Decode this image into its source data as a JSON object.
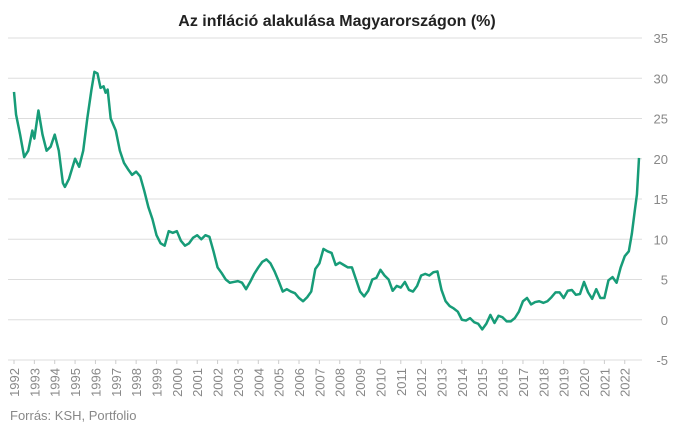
{
  "chart_data": {
    "type": "line",
    "title": "Az infláció alakulása Magyarországon (%)",
    "source": "Forrás: KSH, Portfolio",
    "color": "#179c78",
    "grid": true,
    "xlim": [
      1992,
      2022.7
    ],
    "xticks": [
      1992,
      1993,
      1994,
      1995,
      1996,
      1997,
      1998,
      1999,
      2000,
      2001,
      2002,
      2003,
      2004,
      2005,
      2006,
      2007,
      2008,
      2009,
      2010,
      2011,
      2012,
      2013,
      2014,
      2015,
      2016,
      2017,
      2018,
      2019,
      2020,
      2021,
      2022
    ],
    "ylim": [
      -5,
      35
    ],
    "yticks": [
      -5,
      0,
      5,
      10,
      15,
      20,
      25,
      30,
      35
    ],
    "x": [
      1992.0,
      1992.1,
      1992.3,
      1992.5,
      1992.7,
      1992.9,
      1993.0,
      1993.2,
      1993.4,
      1993.6,
      1993.8,
      1994.0,
      1994.2,
      1994.4,
      1994.5,
      1994.7,
      1995.0,
      1995.2,
      1995.4,
      1995.6,
      1995.8,
      1995.95,
      1996.1,
      1996.25,
      1996.4,
      1996.5,
      1996.6,
      1996.75,
      1997.0,
      1997.2,
      1997.4,
      1997.6,
      1997.8,
      1998.0,
      1998.2,
      1998.4,
      1998.6,
      1998.8,
      1999.0,
      1999.2,
      1999.4,
      1999.6,
      1999.8,
      2000.0,
      2000.2,
      2000.4,
      2000.6,
      2000.8,
      2001.0,
      2001.2,
      2001.4,
      2001.6,
      2001.8,
      2002.0,
      2002.2,
      2002.4,
      2002.6,
      2002.8,
      2003.0,
      2003.2,
      2003.4,
      2003.6,
      2003.8,
      2004.0,
      2004.2,
      2004.4,
      2004.6,
      2004.8,
      2005.0,
      2005.2,
      2005.4,
      2005.6,
      2005.8,
      2006.0,
      2006.2,
      2006.4,
      2006.6,
      2006.8,
      2007.0,
      2007.2,
      2007.4,
      2007.6,
      2007.8,
      2008.0,
      2008.2,
      2008.4,
      2008.6,
      2008.8,
      2009.0,
      2009.2,
      2009.4,
      2009.6,
      2009.8,
      2010.0,
      2010.2,
      2010.4,
      2010.6,
      2010.8,
      2011.0,
      2011.2,
      2011.4,
      2011.6,
      2011.8,
      2012.0,
      2012.2,
      2012.4,
      2012.6,
      2012.8,
      2013.0,
      2013.2,
      2013.4,
      2013.6,
      2013.8,
      2014.0,
      2014.2,
      2014.4,
      2014.6,
      2014.8,
      2015.0,
      2015.2,
      2015.4,
      2015.6,
      2015.8,
      2016.0,
      2016.2,
      2016.4,
      2016.6,
      2016.8,
      2017.0,
      2017.2,
      2017.4,
      2017.6,
      2017.8,
      2018.0,
      2018.2,
      2018.4,
      2018.6,
      2018.8,
      2019.0,
      2019.2,
      2019.4,
      2019.6,
      2019.8,
      2020.0,
      2020.2,
      2020.4,
      2020.6,
      2020.8,
      2021.0,
      2021.2,
      2021.4,
      2021.6,
      2021.8,
      2022.0,
      2022.2,
      2022.35,
      2022.5,
      2022.6,
      2022.7
    ],
    "values": [
      28.3,
      25.5,
      23,
      20.2,
      21,
      23.5,
      22.5,
      26,
      23,
      21,
      21.5,
      23,
      21,
      17,
      16.5,
      17.5,
      20,
      19,
      21,
      25,
      28.5,
      30.8,
      30.6,
      28.8,
      29,
      28.2,
      28.6,
      25,
      23.5,
      21,
      19.5,
      18.7,
      18,
      18.4,
      17.8,
      16,
      14,
      12.5,
      10.5,
      9.5,
      9.2,
      11,
      10.8,
      11,
      9.8,
      9.2,
      9.5,
      10.2,
      10.5,
      10,
      10.5,
      10.3,
      8.5,
      6.5,
      5.8,
      5,
      4.6,
      4.7,
      4.8,
      4.6,
      3.8,
      4.7,
      5.7,
      6.5,
      7.2,
      7.5,
      7,
      6,
      4.8,
      3.5,
      3.8,
      3.5,
      3.3,
      2.7,
      2.3,
      2.8,
      3.5,
      6.3,
      7,
      8.8,
      8.5,
      8.3,
      6.8,
      7.1,
      6.8,
      6.5,
      6.5,
      5,
      3.5,
      2.9,
      3.6,
      5,
      5.2,
      6.2,
      5.5,
      5,
      3.6,
      4.2,
      4,
      4.7,
      3.7,
      3.5,
      4.2,
      5.5,
      5.7,
      5.5,
      5.9,
      6,
      3.7,
      2.3,
      1.7,
      1.4,
      1,
      0,
      -0.1,
      0.2,
      -0.3,
      -0.5,
      -1.2,
      -0.5,
      0.6,
      -0.4,
      0.5,
      0.3,
      -0.2,
      -0.2,
      0.2,
      1,
      2.3,
      2.7,
      1.9,
      2.2,
      2.3,
      2.1,
      2.3,
      2.8,
      3.4,
      3.4,
      2.7,
      3.6,
      3.7,
      3.1,
      3.2,
      4.7,
      3.4,
      2.6,
      3.8,
      2.7,
      2.7,
      4.9,
      5.3,
      4.6,
      6.5,
      7.9,
      8.5,
      10.7,
      13.7,
      15.6,
      20.1
    ]
  }
}
